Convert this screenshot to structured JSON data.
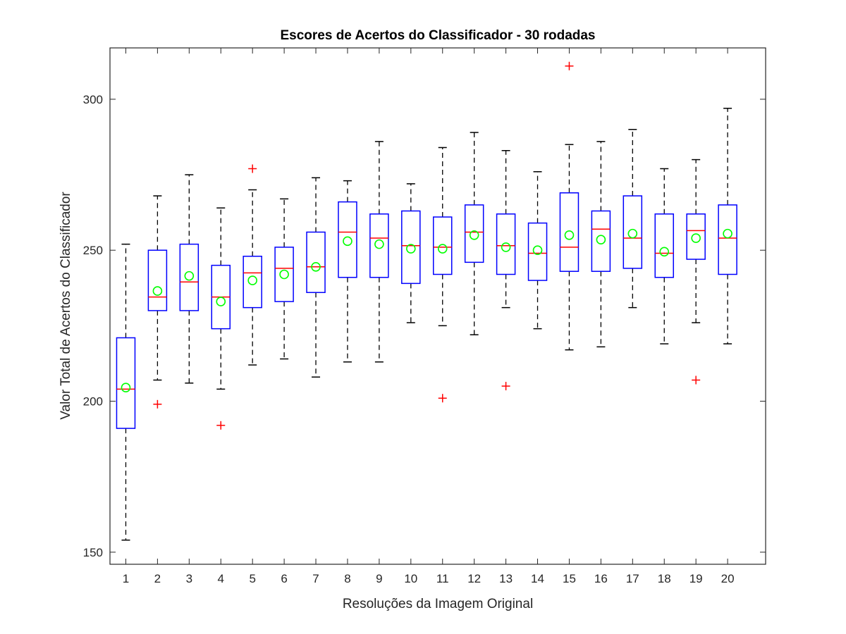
{
  "chart_data": {
    "type": "boxplot",
    "title": "Escores de Acertos do Classificador - 30 rodadas",
    "xlabel": "Resoluções da Imagem Original",
    "ylabel": "Valor Total de Acertos do Classificador",
    "categories": [
      "1",
      "2",
      "3",
      "4",
      "5",
      "6",
      "7",
      "8",
      "9",
      "10",
      "11",
      "12",
      "13",
      "14",
      "15",
      "16",
      "17",
      "18",
      "19",
      "20"
    ],
    "ylim": [
      146,
      317
    ],
    "yticks": [
      150,
      200,
      250,
      300
    ],
    "grid": false,
    "legend": "none",
    "boxes": [
      {
        "category": "1",
        "whisker_low": 154,
        "q1": 191,
        "median": 204,
        "q3": 221,
        "whisker_high": 252,
        "mean": 204.5,
        "outliers": []
      },
      {
        "category": "2",
        "whisker_low": 207,
        "q1": 230,
        "median": 234.5,
        "q3": 250,
        "whisker_high": 268,
        "mean": 236.5,
        "outliers": [
          199
        ]
      },
      {
        "category": "3",
        "whisker_low": 206,
        "q1": 230,
        "median": 239.5,
        "q3": 252,
        "whisker_high": 275,
        "mean": 241.5,
        "outliers": []
      },
      {
        "category": "4",
        "whisker_low": 204,
        "q1": 224,
        "median": 234.5,
        "q3": 245,
        "whisker_high": 264,
        "mean": 233,
        "outliers": [
          192
        ]
      },
      {
        "category": "5",
        "whisker_low": 212,
        "q1": 231,
        "median": 242.5,
        "q3": 248,
        "whisker_high": 270,
        "mean": 240,
        "outliers": [
          277
        ]
      },
      {
        "category": "6",
        "whisker_low": 214,
        "q1": 233,
        "median": 244,
        "q3": 251,
        "whisker_high": 267,
        "mean": 242,
        "outliers": []
      },
      {
        "category": "7",
        "whisker_low": 208,
        "q1": 236,
        "median": 244.5,
        "q3": 256,
        "whisker_high": 274,
        "mean": 244.5,
        "outliers": []
      },
      {
        "category": "8",
        "whisker_low": 213,
        "q1": 241,
        "median": 256,
        "q3": 266,
        "whisker_high": 273,
        "mean": 253,
        "outliers": []
      },
      {
        "category": "9",
        "whisker_low": 213,
        "q1": 241,
        "median": 254,
        "q3": 262,
        "whisker_high": 286,
        "mean": 252,
        "outliers": []
      },
      {
        "category": "10",
        "whisker_low": 226,
        "q1": 239,
        "median": 251.5,
        "q3": 263,
        "whisker_high": 272,
        "mean": 250.5,
        "outliers": []
      },
      {
        "category": "11",
        "whisker_low": 225,
        "q1": 242,
        "median": 251,
        "q3": 261,
        "whisker_high": 284,
        "mean": 250.5,
        "outliers": [
          201
        ]
      },
      {
        "category": "12",
        "whisker_low": 222,
        "q1": 246,
        "median": 256,
        "q3": 265,
        "whisker_high": 289,
        "mean": 255,
        "outliers": []
      },
      {
        "category": "13",
        "whisker_low": 231,
        "q1": 242,
        "median": 251.5,
        "q3": 262,
        "whisker_high": 283,
        "mean": 251,
        "outliers": [
          205
        ]
      },
      {
        "category": "14",
        "whisker_low": 224,
        "q1": 240,
        "median": 249,
        "q3": 259,
        "whisker_high": 276,
        "mean": 250,
        "outliers": []
      },
      {
        "category": "15",
        "whisker_low": 217,
        "q1": 243,
        "median": 251,
        "q3": 269,
        "whisker_high": 285,
        "mean": 255,
        "outliers": [
          311
        ]
      },
      {
        "category": "16",
        "whisker_low": 218,
        "q1": 243,
        "median": 257,
        "q3": 263,
        "whisker_high": 286,
        "mean": 253.5,
        "outliers": []
      },
      {
        "category": "17",
        "whisker_low": 231,
        "q1": 244,
        "median": 254,
        "q3": 268,
        "whisker_high": 290,
        "mean": 255.5,
        "outliers": []
      },
      {
        "category": "18",
        "whisker_low": 219,
        "q1": 241,
        "median": 249,
        "q3": 262,
        "whisker_high": 277,
        "mean": 249.5,
        "outliers": []
      },
      {
        "category": "19",
        "whisker_low": 226,
        "q1": 247,
        "median": 256.5,
        "q3": 262,
        "whisker_high": 280,
        "mean": 254,
        "outliers": [
          207
        ]
      },
      {
        "category": "20",
        "whisker_low": 219,
        "q1": 242,
        "median": 254,
        "q3": 265,
        "whisker_high": 297,
        "mean": 255.5,
        "outliers": []
      }
    ],
    "colors": {
      "box": "#0000ff",
      "median": "#ff0000",
      "whisker": "#000000",
      "outlier": "#ff0000",
      "mean": "#00ff00",
      "axis": "#262626"
    }
  }
}
